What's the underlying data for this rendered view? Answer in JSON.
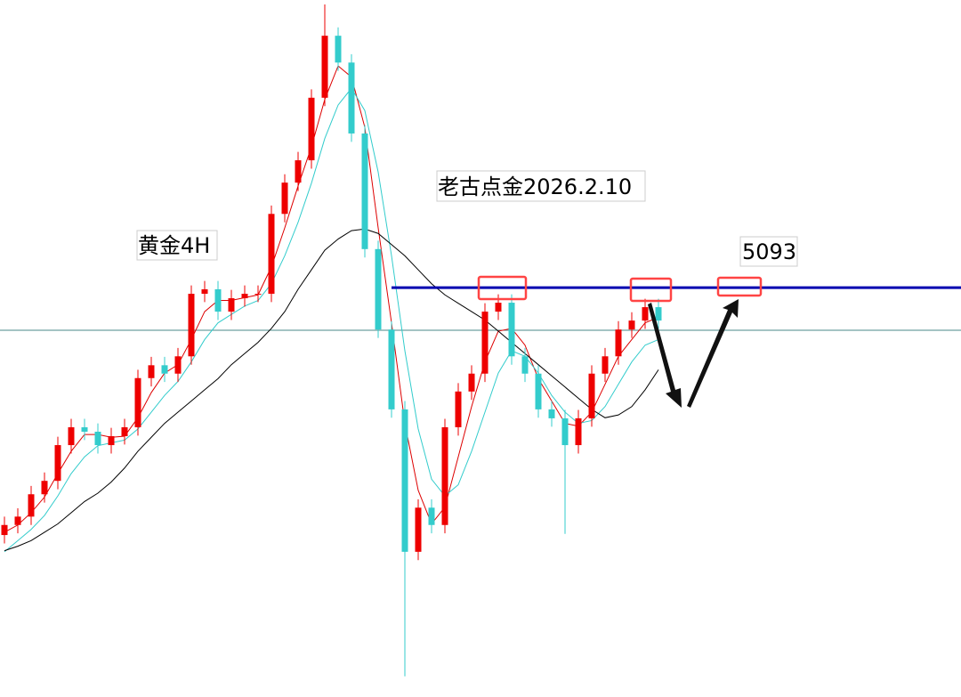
{
  "chart_data": {
    "type": "candlestick",
    "title": "黄金4H",
    "subtitle": "老古点金2026.2.10",
    "ylim": [
      4360,
      5608
    ],
    "level": 5093,
    "up_color": "#ee0000",
    "down_color": "#33cccc",
    "level_color": "#0000b0",
    "open": [
      4650,
      4668,
      4683,
      4723,
      4747,
      4811,
      4843,
      4835,
      4811,
      4827,
      4843,
      4931,
      4954,
      4939,
      4970,
      5082,
      5090,
      5050,
      5074,
      5082,
      5082,
      5225,
      5281,
      5321,
      5433,
      5544,
      5496,
      5369,
      5162,
      5018,
      4875,
      4620,
      4699,
      4668,
      4843,
      4907,
      4939,
      5050,
      5066,
      4970,
      4939,
      4875,
      4859,
      4811,
      4859,
      4939,
      4970,
      5018,
      5034,
      5058
    ],
    "high": [
      4683,
      4698,
      4738,
      4762,
      4826,
      4858,
      4858,
      4850,
      4842,
      4858,
      4946,
      4969,
      4969,
      4985,
      5097,
      5105,
      5105,
      5089,
      5097,
      5097,
      5240,
      5296,
      5336,
      5448,
      5600,
      5559,
      5511,
      5384,
      5177,
      5033,
      4890,
      4714,
      4714,
      4858,
      4922,
      4954,
      5065,
      5081,
      5081,
      4985,
      4954,
      4890,
      4874,
      4874,
      4954,
      4985,
      5033,
      5049,
      5073,
      5073
    ],
    "low": [
      4635,
      4653,
      4668,
      4708,
      4732,
      4796,
      4820,
      4796,
      4796,
      4812,
      4828,
      4916,
      4924,
      4924,
      4955,
      5067,
      5035,
      5035,
      5059,
      5067,
      5067,
      5210,
      5266,
      5306,
      5418,
      5481,
      5354,
      5147,
      5003,
      4860,
      4397,
      4605,
      4653,
      4653,
      4828,
      4892,
      4924,
      5035,
      4955,
      4924,
      4860,
      4844,
      4652,
      4796,
      4844,
      4924,
      4955,
      5003,
      5019,
      5019
    ],
    "close": [
      4668,
      4683,
      4723,
      4747,
      4811,
      4843,
      4835,
      4811,
      4827,
      4843,
      4931,
      4954,
      4939,
      4970,
      5082,
      5090,
      5050,
      5074,
      5082,
      5082,
      5225,
      5281,
      5321,
      5433,
      5544,
      5496,
      5369,
      5162,
      5018,
      4875,
      4620,
      4699,
      4668,
      4843,
      4907,
      4939,
      5050,
      5066,
      4970,
      4939,
      4875,
      4859,
      4811,
      4859,
      4939,
      4970,
      5018,
      5034,
      5058,
      5034
    ],
    "lines": [
      {
        "color": "#dd0000",
        "values": [
          4655,
          4668,
          4690,
          4718,
          4760,
          4800,
          4830,
          4830,
          4825,
          4827,
          4860,
          4905,
          4940,
          4955,
          5000,
          5050,
          5070,
          5070,
          5075,
          5080,
          5130,
          5200,
          5275,
          5345,
          5430,
          5490,
          5470,
          5380,
          5200,
          5030,
          4850,
          4730,
          4670,
          4700,
          4790,
          4880,
          4960,
          5015,
          5020,
          4990,
          4930,
          4890,
          4850,
          4845,
          4870,
          4920,
          4970,
          5000,
          5030,
          5040
        ]
      },
      {
        "color": "#33cccc",
        "values": [
          4620,
          4640,
          4660,
          4685,
          4720,
          4760,
          4790,
          4810,
          4815,
          4820,
          4840,
          4870,
          4900,
          4925,
          4960,
          5000,
          5030,
          5045,
          5060,
          5070,
          5100,
          5150,
          5210,
          5280,
          5360,
          5420,
          5450,
          5410,
          5300,
          5150,
          4980,
          4840,
          4750,
          4720,
          4740,
          4800,
          4870,
          4940,
          4980,
          4970,
          4940,
          4900,
          4870,
          4850,
          4855,
          4880,
          4920,
          4960,
          4990,
          5000
        ]
      },
      {
        "color": "#000000",
        "values": [
          4622,
          4630,
          4640,
          4655,
          4670,
          4690,
          4710,
          4725,
          4745,
          4770,
          4800,
          4825,
          4850,
          4870,
          4890,
          4910,
          4930,
          4955,
          4975,
          4995,
          5020,
          5050,
          5090,
          5125,
          5160,
          5180,
          5195,
          5198,
          5190,
          5170,
          5150,
          5125,
          5100,
          5080,
          5065,
          5050,
          5035,
          5015,
          4995,
          4975,
          4955,
          4935,
          4915,
          4895,
          4875,
          4860,
          4865,
          4880,
          4910,
          4946
        ]
      }
    ]
  }
}
